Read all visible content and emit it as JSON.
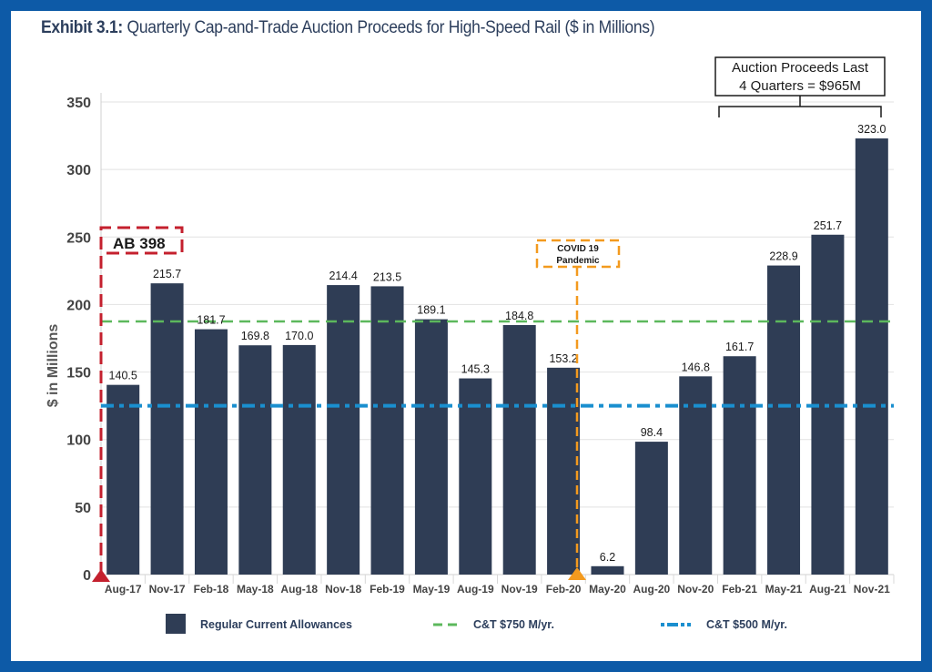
{
  "page": {
    "title_bold": "Exhibit 3.1:",
    "title_rest": " Quarterly Cap-and-Trade Auction Proceeds for High-Speed Rail ($ in Millions)"
  },
  "colors": {
    "frame": "#0d5aa7",
    "bar": "#2f3d55",
    "line_750": "#5cb85c",
    "line_500": "#1a8fcf",
    "ab398": "#c4202e",
    "covid": "#f39a1e"
  },
  "chart_data": {
    "type": "bar",
    "title": "Exhibit 3.1: Quarterly Cap-and-Trade Auction Proceeds for High-Speed Rail ($ in Millions)",
    "xlabel": "",
    "ylabel": "$ in Millions",
    "ylim": [
      0,
      350
    ],
    "yticks": [
      0,
      50,
      100,
      150,
      200,
      250,
      300,
      350
    ],
    "grid": true,
    "categories": [
      "Aug-17",
      "Nov-17",
      "Feb-18",
      "May-18",
      "Aug-18",
      "Nov-18",
      "Feb-19",
      "May-19",
      "Aug-19",
      "Nov-19",
      "Feb-20",
      "May-20",
      "Aug-20",
      "Nov-20",
      "Feb-21",
      "May-21",
      "Aug-21",
      "Nov-21"
    ],
    "series": [
      {
        "name": "Regular Current Allowances",
        "values": [
          140.5,
          215.7,
          181.7,
          169.8,
          170.0,
          214.4,
          213.5,
          189.1,
          145.3,
          184.8,
          153.2,
          6.2,
          98.4,
          146.8,
          161.7,
          228.9,
          251.7,
          323.0
        ],
        "labels": [
          "140.5",
          "215.7",
          "181.7",
          "169.8",
          "170.0",
          "214.4",
          "213.5",
          "189.1",
          "145.3",
          "184.8",
          "153.2",
          "6.2",
          "98.4",
          "146.8",
          "161.7",
          "228.9",
          "251.7",
          "323.0"
        ]
      }
    ],
    "reference_lines": [
      {
        "name": "C&T $750 M/yr.",
        "value": 187.5,
        "style": "dashed"
      },
      {
        "name": "C&T $500 M/yr.",
        "value": 125,
        "style": "dash-dot"
      }
    ],
    "annotations": [
      {
        "text": "AB 398",
        "at_category": "Aug-17",
        "position": "left-edge"
      },
      {
        "text_line1": "COVID 19",
        "text_line2": "Pandemic",
        "between": [
          "Feb-20",
          "May-20"
        ]
      },
      {
        "text_line1": "Auction Proceeds Last",
        "text_line2": "4 Quarters = $965M",
        "span": [
          "Feb-21",
          "Nov-21"
        ]
      }
    ],
    "legend": {
      "placement": "bottom",
      "items": [
        "Regular Current Allowances",
        "C&T $750 M/yr.",
        "C&T $500 M/yr."
      ]
    }
  }
}
